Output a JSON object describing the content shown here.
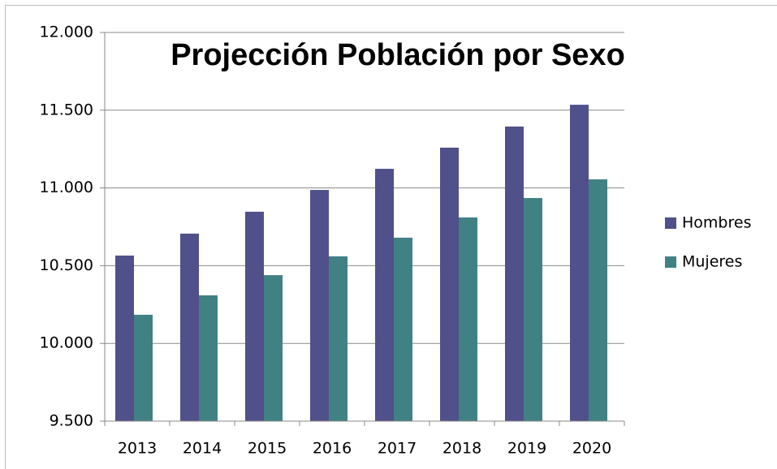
{
  "chart_data": {
    "type": "bar",
    "title": "Projección  Población por Sexo",
    "categories": [
      "2013",
      "2014",
      "2015",
      "2016",
      "2017",
      "2018",
      "2019",
      "2020"
    ],
    "series": [
      {
        "name": "Hombres",
        "color": "#50508a",
        "values": [
          10565,
          10706,
          10847,
          10987,
          11123,
          11259,
          11395,
          11535
        ]
      },
      {
        "name": "Mujeres",
        "color": "#408184",
        "values": [
          10184,
          10309,
          10439,
          10560,
          10680,
          10810,
          10935,
          11055
        ]
      }
    ],
    "ylim": [
      9500,
      12000
    ],
    "yticks": [
      {
        "value": 9500,
        "label": "9.500"
      },
      {
        "value": 10000,
        "label": "10.000"
      },
      {
        "value": 10500,
        "label": "10.500"
      },
      {
        "value": 11000,
        "label": "11.000"
      },
      {
        "value": 11500,
        "label": "11.500"
      },
      {
        "value": 12000,
        "label": "12.000"
      }
    ],
    "grid": true,
    "legend": "right"
  }
}
